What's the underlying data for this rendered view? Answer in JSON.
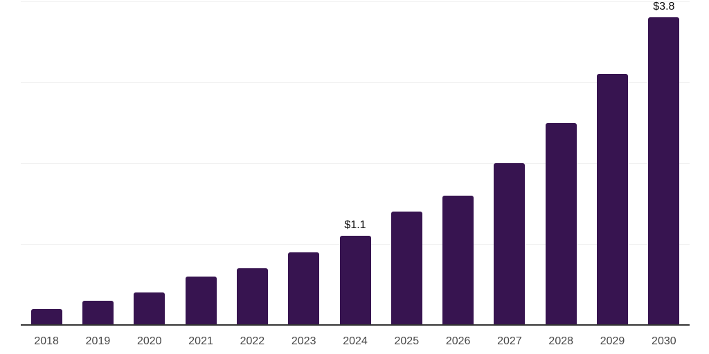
{
  "chart_data": {
    "type": "bar",
    "title": "",
    "xlabel": "",
    "ylabel": "",
    "categories": [
      "2018",
      "2019",
      "2020",
      "2021",
      "2022",
      "2023",
      "2024",
      "2025",
      "2026",
      "2027",
      "2028",
      "2029",
      "2030"
    ],
    "values": [
      0.2,
      0.3,
      0.4,
      0.6,
      0.7,
      0.9,
      1.1,
      1.4,
      1.6,
      2.0,
      2.5,
      3.1,
      3.8
    ],
    "value_labels": [
      "",
      "",
      "",
      "",
      "",
      "",
      "$1.1",
      "",
      "",
      "",
      "",
      "",
      "$3.8"
    ],
    "ylim": [
      0,
      4.0
    ],
    "y_gridlines": [
      1.0,
      2.0,
      3.0,
      4.0
    ],
    "y_axis_labels_visible": false,
    "grid": "horizontal-only",
    "legend_position": "none",
    "colors": {
      "bar": "#371450",
      "gridline": "#f1f1f1",
      "axis_line": "#333333",
      "tick_label": "#474747",
      "value_label": "#0a0a0a",
      "background": "#ffffff"
    }
  }
}
